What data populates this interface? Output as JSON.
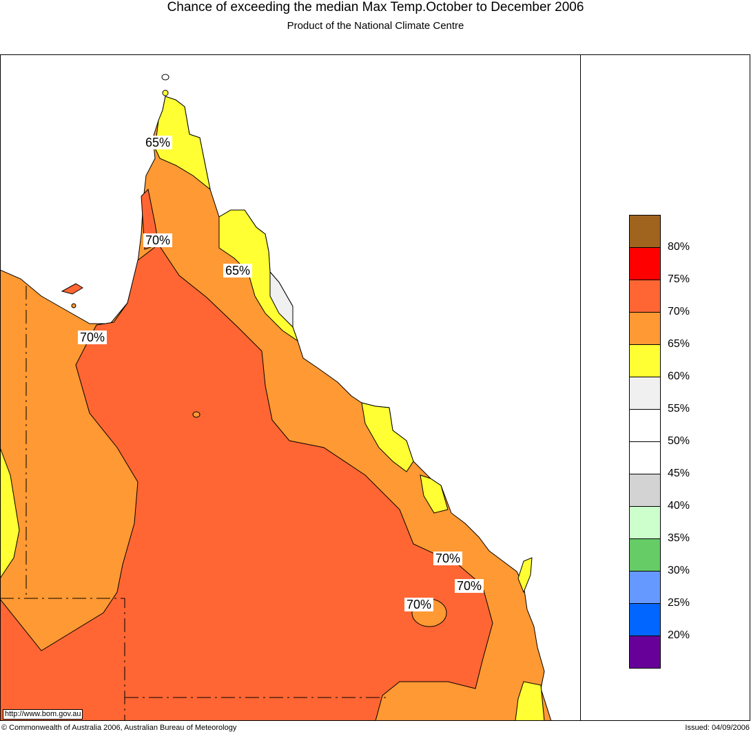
{
  "header": {
    "title": "Chance of exceeding the median Max Temp.October to December 2006",
    "subtitle": "Product of the National Climate Centre"
  },
  "map": {
    "contour_labels": [
      "65%",
      "70%",
      "65%",
      "70%",
      "70%",
      "70%",
      "70%"
    ],
    "url": "http://www.bom.gov.au"
  },
  "legend": {
    "colors": [
      "#a0641e",
      "#ff0000",
      "#ff6633",
      "#ff9933",
      "#ffff33",
      "#f0f0f0",
      "#ffffff",
      "#ffffff",
      "#d3d3d3",
      "#ccffcc",
      "#66cc66",
      "#6699ff",
      "#0066ff",
      "#660099"
    ],
    "labels": [
      "80%",
      "75%",
      "70%",
      "65%",
      "60%",
      "55%",
      "50%",
      "45%",
      "40%",
      "35%",
      "30%",
      "25%",
      "20%"
    ]
  },
  "footer": {
    "copyright": "© Commonwealth of Australia 2006, Australian Bureau of Meteorology",
    "issued": "Issued: 04/09/2006"
  }
}
